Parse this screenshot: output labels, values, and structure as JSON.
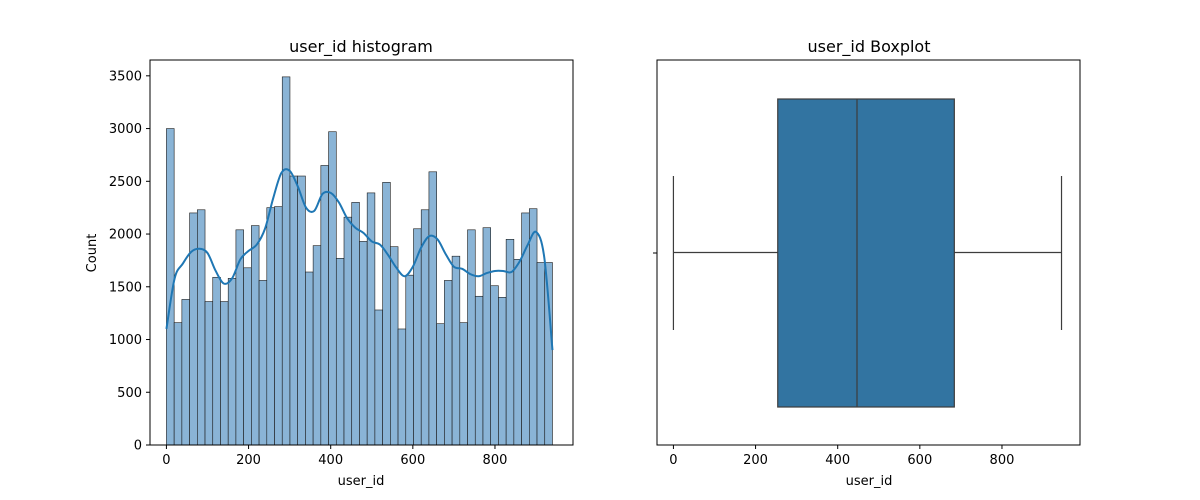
{
  "chart_data": [
    {
      "type": "bar",
      "title": "user_id histogram",
      "xlabel": "user_id",
      "ylabel": "Count",
      "xlim": [
        -40,
        990
      ],
      "ylim": [
        0,
        3650
      ],
      "xticks": [
        0,
        200,
        400,
        600,
        800
      ],
      "yticks": [
        0,
        500,
        1000,
        1500,
        2000,
        2500,
        3000,
        3500
      ],
      "bin_start": 0,
      "bin_width": 18.8,
      "values": [
        3000,
        1160,
        1380,
        2200,
        2230,
        1360,
        1590,
        1360,
        1580,
        2040,
        1680,
        2080,
        1560,
        2250,
        2260,
        3490,
        2550,
        2550,
        1640,
        1890,
        2650,
        2970,
        1770,
        2160,
        2300,
        1930,
        2390,
        1280,
        2490,
        1880,
        1100,
        1610,
        2050,
        2230,
        2590,
        1150,
        1560,
        1790,
        1160,
        2040,
        1410,
        2060,
        1510,
        1400,
        1950,
        1760,
        2200,
        2240,
        1730,
        1730
      ],
      "kde": {
        "x": [
          0,
          20,
          40,
          60,
          80,
          100,
          120,
          140,
          160,
          180,
          200,
          220,
          240,
          260,
          280,
          300,
          320,
          340,
          360,
          380,
          400,
          420,
          440,
          460,
          480,
          500,
          520,
          540,
          560,
          580,
          600,
          620,
          640,
          660,
          680,
          700,
          720,
          740,
          760,
          780,
          800,
          820,
          840,
          860,
          880,
          900,
          920,
          940
        ],
        "y": [
          1100,
          1580,
          1720,
          1830,
          1860,
          1820,
          1650,
          1530,
          1580,
          1760,
          1840,
          1900,
          2050,
          2340,
          2580,
          2600,
          2450,
          2250,
          2220,
          2380,
          2390,
          2300,
          2150,
          2060,
          2010,
          1930,
          1900,
          1800,
          1680,
          1600,
          1690,
          1870,
          1980,
          1950,
          1810,
          1690,
          1670,
          1620,
          1600,
          1630,
          1650,
          1650,
          1640,
          1740,
          1900,
          2020,
          1780,
          900
        ]
      },
      "colors": {
        "bar_fill": "#8ab4d6",
        "bar_edge": "#1a1a1a",
        "kde_line": "#1f77b4"
      }
    },
    {
      "type": "boxplot",
      "title": "user_id Boxplot",
      "xlabel": "user_id",
      "xlim": [
        -40,
        990
      ],
      "xticks": [
        0,
        200,
        400,
        600,
        800
      ],
      "whisker_low": 0,
      "q1": 254,
      "median": 447,
      "q3": 684,
      "whisker_high": 945,
      "colors": {
        "box_fill": "#3274a1",
        "line": "#3d3d3d"
      }
    }
  ]
}
